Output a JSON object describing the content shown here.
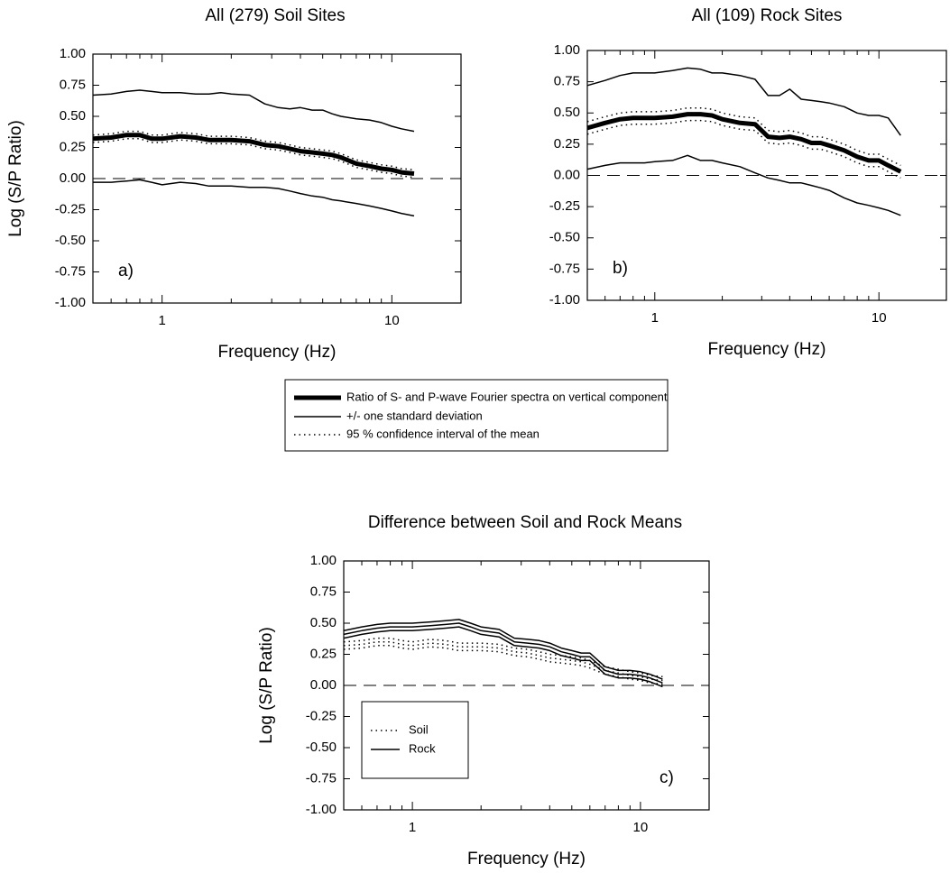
{
  "chart_data": [
    {
      "type": "line",
      "title": "All (279) Soil Sites",
      "xlabel": "Frequency (Hz)",
      "ylabel": "Log (S/P Ratio)",
      "annotation": "a)",
      "xlog": true,
      "xlim": [
        0.5,
        20
      ],
      "xticks": [
        1,
        10
      ],
      "xminor_ticks": [
        0.5,
        0.6,
        0.7,
        0.8,
        0.9,
        2,
        3,
        4,
        5,
        6,
        7,
        8,
        9,
        20
      ],
      "ylim": [
        -1,
        1
      ],
      "yticks": [
        {
          "value": -1,
          "label": "-1.00"
        },
        {
          "value": -0.75,
          "label": "-0.75"
        },
        {
          "value": -0.5,
          "label": "-0.50"
        },
        {
          "value": -0.25,
          "label": "-0.25"
        },
        {
          "value": 0,
          "label": "0.00"
        },
        {
          "value": 0.25,
          "label": "0.25"
        },
        {
          "value": 0.5,
          "label": "0.50"
        },
        {
          "value": 0.75,
          "label": "0.75"
        },
        {
          "value": 1,
          "label": "1.00"
        }
      ],
      "reference_line": 0,
      "x": [
        0.5,
        0.6,
        0.7,
        0.8,
        0.9,
        1,
        1.2,
        1.4,
        1.6,
        1.8,
        2,
        2.4,
        2.8,
        3.2,
        3.6,
        4,
        4.5,
        5,
        5.5,
        6,
        7,
        8,
        9,
        10,
        11,
        12.5
      ],
      "series": [
        {
          "name": "Ratio of S- and P-wave Fourier spectra on vertical component",
          "color": "#000",
          "style": "thick",
          "values": [
            0.32,
            0.33,
            0.35,
            0.35,
            0.32,
            0.32,
            0.34,
            0.33,
            0.31,
            0.31,
            0.31,
            0.3,
            0.27,
            0.26,
            0.24,
            0.22,
            0.21,
            0.2,
            0.19,
            0.17,
            0.12,
            0.1,
            0.08,
            0.07,
            0.05,
            0.04
          ]
        },
        {
          "name": "+/- one standard deviation",
          "color": "#000",
          "style": "solid",
          "upper": [
            0.67,
            0.68,
            0.7,
            0.71,
            0.7,
            0.69,
            0.69,
            0.68,
            0.68,
            0.69,
            0.68,
            0.67,
            0.6,
            0.57,
            0.56,
            0.57,
            0.55,
            0.55,
            0.52,
            0.5,
            0.48,
            0.47,
            0.45,
            0.42,
            0.4,
            0.38
          ],
          "lower": [
            -0.03,
            -0.03,
            -0.02,
            -0.01,
            -0.03,
            -0.05,
            -0.03,
            -0.04,
            -0.06,
            -0.06,
            -0.06,
            -0.07,
            -0.07,
            -0.08,
            -0.1,
            -0.12,
            -0.14,
            -0.15,
            -0.17,
            -0.18,
            -0.2,
            -0.22,
            -0.24,
            -0.26,
            -0.28,
            -0.3
          ]
        },
        {
          "name": "95 % confidence interval of the mean",
          "color": "#000",
          "style": "dotted",
          "upper": [
            0.35,
            0.36,
            0.38,
            0.38,
            0.35,
            0.35,
            0.37,
            0.36,
            0.34,
            0.34,
            0.34,
            0.33,
            0.3,
            0.29,
            0.27,
            0.25,
            0.24,
            0.23,
            0.22,
            0.2,
            0.15,
            0.13,
            0.11,
            0.1,
            0.08,
            0.07
          ],
          "lower": [
            0.29,
            0.3,
            0.32,
            0.32,
            0.29,
            0.29,
            0.31,
            0.3,
            0.28,
            0.28,
            0.28,
            0.27,
            0.24,
            0.23,
            0.21,
            0.19,
            0.18,
            0.17,
            0.16,
            0.14,
            0.09,
            0.07,
            0.05,
            0.04,
            0.02,
            0.01
          ]
        }
      ]
    },
    {
      "type": "line",
      "title": "All (109) Rock Sites",
      "xlabel": "Frequency (Hz)",
      "annotation": "b)",
      "xlog": true,
      "xlim": [
        0.5,
        20
      ],
      "xticks": [
        1,
        10
      ],
      "xminor_ticks": [
        0.5,
        0.6,
        0.7,
        0.8,
        0.9,
        2,
        3,
        4,
        5,
        6,
        7,
        8,
        9,
        20
      ],
      "ylim": [
        -1,
        1
      ],
      "yticks": [
        {
          "value": -1,
          "label": "-1.00"
        },
        {
          "value": -0.75,
          "label": "-0.75"
        },
        {
          "value": -0.5,
          "label": "-0.50"
        },
        {
          "value": -0.25,
          "label": "-0.25"
        },
        {
          "value": 0,
          "label": "0.00"
        },
        {
          "value": 0.25,
          "label": "0.25"
        },
        {
          "value": 0.5,
          "label": "0.50"
        },
        {
          "value": 0.75,
          "label": "0.75"
        },
        {
          "value": 1,
          "label": "1.00"
        }
      ],
      "reference_line": 0,
      "x": [
        0.5,
        0.6,
        0.7,
        0.8,
        0.9,
        1,
        1.2,
        1.4,
        1.6,
        1.8,
        2,
        2.4,
        2.8,
        3.2,
        3.6,
        4,
        4.5,
        5,
        5.5,
        6,
        7,
        8,
        9,
        10,
        11,
        12.5
      ],
      "series": [
        {
          "color": "#000",
          "style": "thick",
          "values": [
            0.38,
            0.42,
            0.45,
            0.46,
            0.46,
            0.46,
            0.47,
            0.49,
            0.49,
            0.48,
            0.45,
            0.42,
            0.41,
            0.31,
            0.3,
            0.31,
            0.29,
            0.26,
            0.26,
            0.24,
            0.2,
            0.15,
            0.12,
            0.12,
            0.08,
            0.03
          ]
        },
        {
          "color": "#000",
          "style": "solid",
          "upper": [
            0.72,
            0.76,
            0.8,
            0.82,
            0.82,
            0.82,
            0.84,
            0.86,
            0.85,
            0.82,
            0.82,
            0.8,
            0.77,
            0.64,
            0.64,
            0.69,
            0.61,
            0.6,
            0.59,
            0.58,
            0.55,
            0.5,
            0.48,
            0.48,
            0.46,
            0.32
          ],
          "lower": [
            0.05,
            0.08,
            0.1,
            0.1,
            0.1,
            0.11,
            0.12,
            0.16,
            0.12,
            0.12,
            0.1,
            0.07,
            0.02,
            -0.02,
            -0.04,
            -0.06,
            -0.06,
            -0.08,
            -0.1,
            -0.12,
            -0.18,
            -0.22,
            -0.24,
            -0.26,
            -0.28,
            -0.32
          ]
        },
        {
          "color": "#000",
          "style": "dotted",
          "upper": [
            0.43,
            0.47,
            0.5,
            0.51,
            0.51,
            0.51,
            0.52,
            0.54,
            0.54,
            0.53,
            0.5,
            0.47,
            0.46,
            0.36,
            0.35,
            0.36,
            0.34,
            0.31,
            0.31,
            0.29,
            0.25,
            0.2,
            0.17,
            0.17,
            0.13,
            0.08
          ],
          "lower": [
            0.33,
            0.37,
            0.4,
            0.41,
            0.41,
            0.41,
            0.42,
            0.44,
            0.44,
            0.43,
            0.4,
            0.37,
            0.36,
            0.26,
            0.25,
            0.26,
            0.24,
            0.21,
            0.21,
            0.19,
            0.15,
            0.1,
            0.07,
            0.07,
            0.03,
            -0.02
          ]
        }
      ]
    },
    {
      "type": "line",
      "title": "Difference between Soil and Rock Means",
      "xlabel": "Frequency (Hz)",
      "ylabel": "Log (S/P Ratio)",
      "annotation": "c)",
      "xlog": true,
      "xlim": [
        0.5,
        20
      ],
      "xticks": [
        1,
        10
      ],
      "xminor_ticks": [
        0.5,
        0.6,
        0.7,
        0.8,
        0.9,
        2,
        3,
        4,
        5,
        6,
        7,
        8,
        9,
        20
      ],
      "ylim": [
        -1,
        1
      ],
      "yticks": [
        {
          "value": -1,
          "label": "-1.00"
        },
        {
          "value": -0.75,
          "label": "-0.75"
        },
        {
          "value": -0.5,
          "label": "-0.50"
        },
        {
          "value": -0.25,
          "label": "-0.25"
        },
        {
          "value": 0,
          "label": "0.00"
        },
        {
          "value": 0.25,
          "label": "0.25"
        },
        {
          "value": 0.5,
          "label": "0.50"
        },
        {
          "value": 0.75,
          "label": "0.75"
        },
        {
          "value": 1,
          "label": "1.00"
        }
      ],
      "reference_line": 0,
      "legend": "lower left",
      "x": [
        0.5,
        0.6,
        0.7,
        0.8,
        0.9,
        1,
        1.2,
        1.4,
        1.6,
        1.8,
        2,
        2.4,
        2.8,
        3.2,
        3.6,
        4,
        4.5,
        5,
        5.5,
        6,
        7,
        8,
        9,
        10,
        11,
        12.5
      ],
      "series": [
        {
          "name": "Soil",
          "color": "#000",
          "style": "dotted",
          "values": [
            0.32,
            0.33,
            0.35,
            0.35,
            0.33,
            0.32,
            0.34,
            0.33,
            0.31,
            0.31,
            0.31,
            0.3,
            0.27,
            0.26,
            0.24,
            0.22,
            0.21,
            0.2,
            0.19,
            0.17,
            0.12,
            0.1,
            0.08,
            0.07,
            0.05,
            0.04
          ],
          "upper": [
            0.35,
            0.36,
            0.38,
            0.38,
            0.36,
            0.35,
            0.37,
            0.36,
            0.34,
            0.34,
            0.34,
            0.33,
            0.3,
            0.29,
            0.27,
            0.25,
            0.24,
            0.23,
            0.22,
            0.2,
            0.15,
            0.13,
            0.11,
            0.1,
            0.08,
            0.07
          ],
          "lower": [
            0.29,
            0.3,
            0.32,
            0.32,
            0.3,
            0.29,
            0.31,
            0.3,
            0.28,
            0.28,
            0.28,
            0.27,
            0.24,
            0.23,
            0.21,
            0.19,
            0.18,
            0.17,
            0.16,
            0.14,
            0.09,
            0.07,
            0.05,
            0.04,
            0.02,
            0.01
          ]
        },
        {
          "name": "Rock",
          "color": "#000",
          "style": "solid",
          "values": [
            0.41,
            0.44,
            0.46,
            0.47,
            0.47,
            0.47,
            0.48,
            0.49,
            0.5,
            0.47,
            0.44,
            0.42,
            0.35,
            0.34,
            0.33,
            0.31,
            0.27,
            0.25,
            0.23,
            0.23,
            0.12,
            0.09,
            0.09,
            0.08,
            0.06,
            0.02
          ],
          "upper": [
            0.44,
            0.47,
            0.49,
            0.5,
            0.5,
            0.5,
            0.51,
            0.52,
            0.53,
            0.5,
            0.47,
            0.45,
            0.38,
            0.37,
            0.36,
            0.34,
            0.3,
            0.28,
            0.26,
            0.26,
            0.15,
            0.12,
            0.12,
            0.11,
            0.09,
            0.05
          ],
          "lower": [
            0.38,
            0.41,
            0.43,
            0.44,
            0.44,
            0.44,
            0.45,
            0.46,
            0.47,
            0.44,
            0.41,
            0.39,
            0.32,
            0.31,
            0.3,
            0.28,
            0.24,
            0.22,
            0.2,
            0.2,
            0.09,
            0.06,
            0.06,
            0.05,
            0.03,
            -0.01
          ]
        }
      ]
    }
  ]
}
